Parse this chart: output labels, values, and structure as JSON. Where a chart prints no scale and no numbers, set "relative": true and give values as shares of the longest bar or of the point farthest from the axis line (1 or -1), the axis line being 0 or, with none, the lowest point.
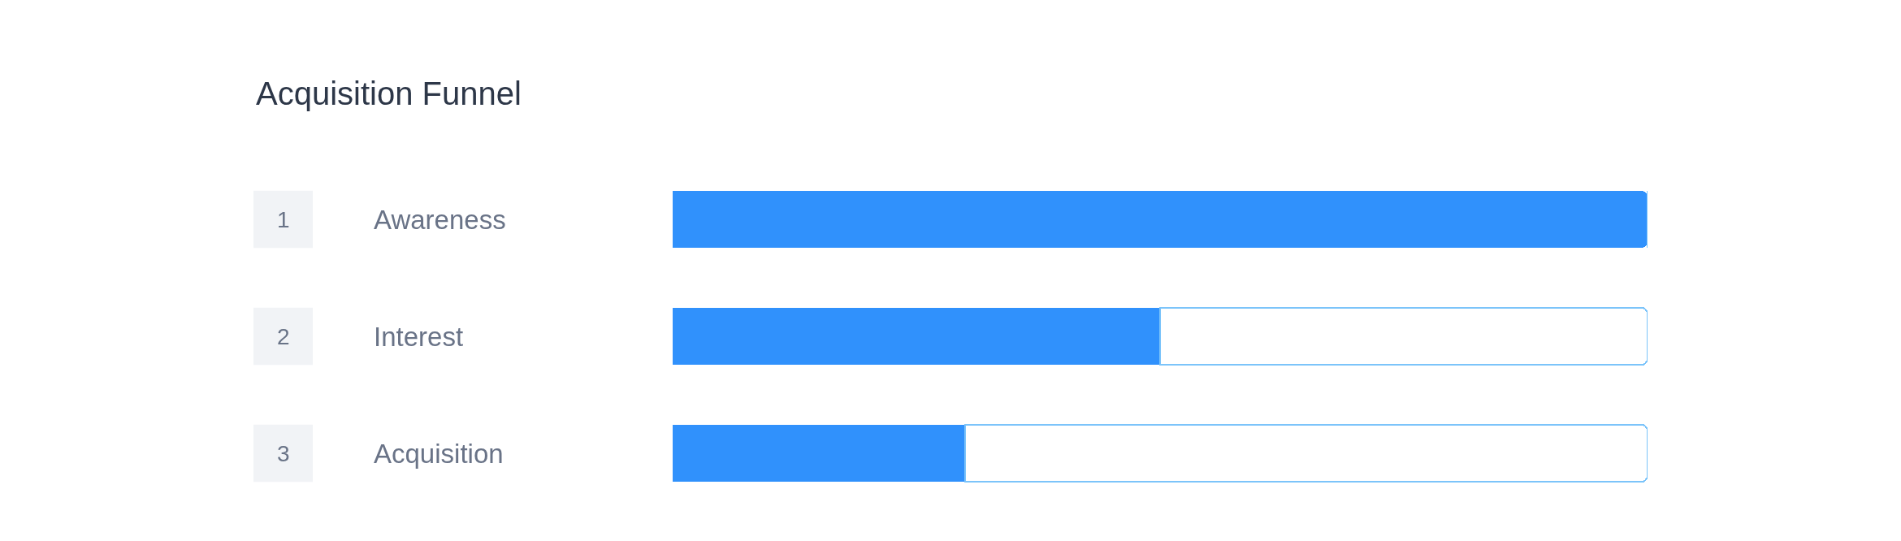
{
  "chart_data": {
    "type": "bar",
    "title": "Acquisition Funnel",
    "orientation": "horizontal",
    "relative": true,
    "stacked": true,
    "categories": [
      "Awareness",
      "Interest",
      "Acquisition"
    ],
    "series": [
      {
        "color": "#3091fc",
        "values": [
          1,
          0.5,
          0.3
        ]
      },
      {
        "color": "#7cc4fa",
        "values": [
          0,
          0.5,
          0.7
        ]
      }
    ],
    "annotations": [
      "1",
      "2",
      "3"
    ]
  }
}
